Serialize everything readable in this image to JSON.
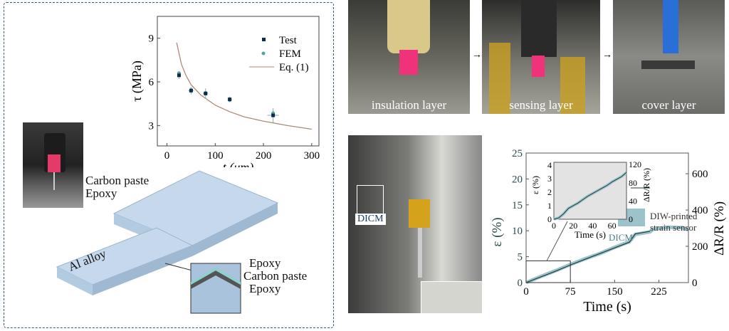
{
  "left_panel": {
    "labels": {
      "carbon_paste": "Carbon paste",
      "epoxy": "Epoxy",
      "al_alloy": "Al alloy",
      "layer_top": "Epoxy",
      "layer_mid": "Carbon paste",
      "layer_bot": "Epoxy"
    }
  },
  "photos": {
    "insulation": "insulation layer",
    "sensing": "sensing layer",
    "cover": "cover layer",
    "dicm": "DICM"
  },
  "chart_data": [
    {
      "type": "scatter",
      "xlabel": "t (μm)",
      "ylabel": "τ (MPa)",
      "xlim": [
        -20,
        315
      ],
      "ylim": [
        1.6,
        10.5
      ],
      "xticks": [
        0,
        100,
        200,
        300
      ],
      "yticks": [
        3,
        6,
        9
      ],
      "legend": "top-right",
      "series": [
        {
          "name": "Test",
          "color": "#0d2b4a",
          "x": [
            25,
            50,
            80,
            130,
            220
          ],
          "y": [
            6.45,
            5.4,
            5.2,
            4.8,
            3.7
          ],
          "xerr": [
            3,
            6,
            5,
            4,
            12
          ],
          "yerr": [
            0.25,
            0.25,
            0.35,
            0.2,
            0.5
          ]
        },
        {
          "name": "FEM",
          "color": "#5aa3a0",
          "x": [
            25,
            50,
            80,
            130,
            220
          ],
          "y": [
            6.6,
            5.45,
            5.25,
            4.75,
            3.85
          ]
        },
        {
          "name": "Eq. (1)",
          "color": "#b08a74",
          "type": "line",
          "x": [
            20,
            30,
            40,
            50,
            70,
            100,
            130,
            160,
            200,
            250,
            300
          ],
          "y": [
            8.7,
            7.2,
            6.4,
            5.8,
            5.1,
            4.4,
            3.95,
            3.6,
            3.3,
            3.0,
            2.75
          ]
        }
      ]
    },
    {
      "type": "line",
      "xlabel": "Time (s)",
      "ylabel": "ε (%)",
      "y2label": "ΔR/R (%)",
      "xlim": [
        0,
        275
      ],
      "ylim": [
        0,
        25
      ],
      "y2lim": [
        0,
        714
      ],
      "xticks": [
        0,
        75,
        150,
        225
      ],
      "yticks": [
        0,
        5,
        10,
        15,
        20,
        25
      ],
      "y2ticks": [
        0,
        200,
        400,
        600
      ],
      "legend": "bottom-right",
      "series": [
        {
          "name": "DICM",
          "color": "#9cc3c9",
          "x": [
            0,
            25,
            50,
            75,
            100,
            125,
            150,
            175,
            185,
            210,
            215,
            240,
            265,
            275
          ],
          "y": [
            0,
            1.2,
            2.3,
            3.5,
            4.6,
            5.6,
            6.8,
            7.9,
            9.3,
            9.8,
            10.3,
            10.7,
            10.6,
            10.2
          ]
        },
        {
          "name": "DIW-printed strain sensor",
          "color": "#1f3b3f",
          "x": [
            0,
            25,
            50,
            75,
            100,
            125,
            150,
            175,
            185,
            210
          ],
          "y": [
            0,
            1.1,
            2.2,
            3.4,
            4.5,
            5.6,
            6.7,
            7.8,
            9.4,
            9.9
          ]
        }
      ],
      "zoom_box": {
        "x": [
          0,
          75
        ],
        "y": [
          0,
          4.2
        ]
      },
      "inset": {
        "xlabel": "Time (s)",
        "ylabel": "ε (%)",
        "y2label": "ΔR/R (%)",
        "xlim": [
          0,
          75
        ],
        "ylim": [
          0,
          4.2
        ],
        "xticks": [
          0,
          20,
          40,
          60
        ],
        "yticks": [
          0,
          1,
          2,
          3,
          4
        ],
        "y2ticks": [
          0,
          40,
          80,
          120
        ],
        "x": [
          0,
          5,
          10,
          15,
          20,
          25,
          30,
          35,
          40,
          45,
          50,
          55,
          60,
          65,
          70,
          75
        ],
        "y": [
          0,
          0.1,
          0.4,
          0.8,
          1.0,
          1.2,
          1.45,
          1.7,
          1.9,
          2.1,
          2.3,
          2.5,
          2.75,
          2.95,
          3.15,
          3.45
        ]
      }
    }
  ]
}
